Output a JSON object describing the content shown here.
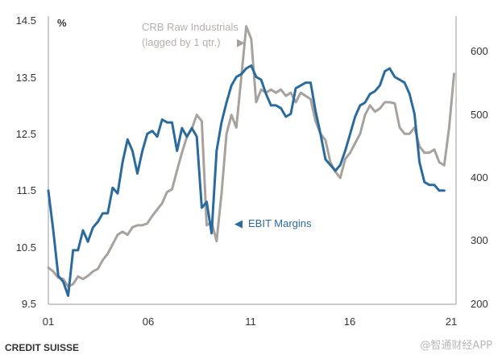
{
  "chart_data": {
    "type": "line",
    "title": "",
    "left_axis": {
      "unit_label": "%",
      "range": [
        9.5,
        14.5
      ],
      "ticks": [
        "14.5",
        "13.5",
        "12.5",
        "11.5",
        "10.5",
        "9.5"
      ]
    },
    "right_axis": {
      "range": [
        200,
        650
      ],
      "ticks": [
        "600",
        "500",
        "400",
        "300",
        "200"
      ]
    },
    "x_axis": {
      "range": [
        2001,
        2021.6
      ],
      "ticks": [
        "01",
        "06",
        "11",
        "16",
        "21"
      ]
    },
    "grid": false,
    "series": [
      {
        "name": "EBIT Margins",
        "axis": "left",
        "color": "#2b6a9c",
        "x": [
          2001.0,
          2001.25,
          2001.5,
          2001.75,
          2002.0,
          2002.25,
          2002.5,
          2002.75,
          2003.0,
          2003.25,
          2003.5,
          2003.75,
          2004.0,
          2004.25,
          2004.5,
          2004.75,
          2005.0,
          2005.25,
          2005.5,
          2005.75,
          2006.0,
          2006.25,
          2006.5,
          2006.75,
          2007.0,
          2007.25,
          2007.5,
          2007.75,
          2008.0,
          2008.25,
          2008.5,
          2008.75,
          2009.0,
          2009.25,
          2009.5,
          2009.75,
          2010.0,
          2010.25,
          2010.5,
          2010.75,
          2011.0,
          2011.25,
          2011.5,
          2011.75,
          2012.0,
          2012.25,
          2012.5,
          2012.75,
          2013.0,
          2013.25,
          2013.5,
          2013.75,
          2014.0,
          2014.25,
          2014.5,
          2014.75,
          2015.0,
          2015.25,
          2015.5,
          2015.75,
          2016.0,
          2016.25,
          2016.5,
          2016.75,
          2017.0,
          2017.25,
          2017.5,
          2017.75,
          2018.0,
          2018.25,
          2018.5,
          2018.75,
          2019.0,
          2019.25,
          2019.5,
          2019.75,
          2020.0,
          2020.25,
          2020.5,
          2020.75,
          2021.0
        ],
        "values": [
          11.5,
          10.8,
          10.0,
          9.9,
          9.65,
          10.45,
          10.45,
          10.8,
          10.6,
          10.85,
          10.95,
          11.1,
          11.1,
          11.55,
          11.45,
          12.0,
          12.4,
          12.2,
          11.8,
          12.2,
          12.5,
          12.55,
          12.45,
          12.75,
          12.7,
          12.7,
          12.2,
          12.6,
          12.45,
          12.6,
          12.45,
          11.2,
          11.3,
          10.75,
          12.2,
          12.7,
          13.05,
          13.35,
          13.5,
          13.55,
          13.65,
          13.7,
          13.5,
          13.45,
          13.2,
          13.0,
          13.0,
          12.95,
          12.8,
          12.85,
          13.3,
          13.35,
          13.4,
          13.4,
          12.9,
          12.5,
          12.05,
          11.95,
          11.85,
          11.95,
          12.2,
          12.5,
          12.8,
          13.0,
          13.05,
          13.2,
          13.25,
          13.35,
          13.6,
          13.65,
          13.5,
          13.45,
          13.4,
          13.2,
          12.85,
          12.0,
          11.65,
          11.6,
          11.6,
          11.5,
          11.5
        ]
      },
      {
        "name": "CRB Raw Industrials (lagged by 1 qtr.)",
        "axis": "right",
        "color": "#a8a29e",
        "x": [
          2001.0,
          2001.25,
          2001.5,
          2001.75,
          2002.0,
          2002.25,
          2002.5,
          2002.75,
          2003.0,
          2003.25,
          2003.5,
          2003.75,
          2004.0,
          2004.25,
          2004.5,
          2004.75,
          2005.0,
          2005.25,
          2005.5,
          2005.75,
          2006.0,
          2006.25,
          2006.5,
          2006.75,
          2007.0,
          2007.25,
          2007.5,
          2007.75,
          2008.0,
          2008.25,
          2008.5,
          2008.75,
          2009.0,
          2009.25,
          2009.5,
          2009.75,
          2010.0,
          2010.25,
          2010.5,
          2010.75,
          2011.0,
          2011.25,
          2011.5,
          2011.75,
          2012.0,
          2012.25,
          2012.5,
          2012.75,
          2013.0,
          2013.25,
          2013.5,
          2013.75,
          2014.0,
          2014.25,
          2014.5,
          2014.75,
          2015.0,
          2015.25,
          2015.5,
          2015.75,
          2016.0,
          2016.25,
          2016.5,
          2016.75,
          2017.0,
          2017.25,
          2017.5,
          2017.75,
          2018.0,
          2018.25,
          2018.5,
          2018.75,
          2019.0,
          2019.25,
          2019.5,
          2019.75,
          2020.0,
          2020.25,
          2020.5,
          2020.75,
          2021.0,
          2021.25,
          2021.5
        ],
        "values": [
          258,
          252,
          242,
          240,
          228,
          232,
          244,
          240,
          245,
          252,
          256,
          270,
          280,
          295,
          310,
          315,
          310,
          322,
          325,
          325,
          328,
          340,
          350,
          360,
          378,
          382,
          412,
          440,
          465,
          478,
          500,
          490,
          325,
          330,
          300,
          375,
          470,
          500,
          480,
          560,
          640,
          620,
          520,
          540,
          535,
          540,
          535,
          540,
          530,
          535,
          520,
          535,
          530,
          525,
          490,
          470,
          460,
          425,
          410,
          400,
          430,
          440,
          455,
          470,
          500,
          515,
          505,
          510,
          520,
          520,
          518,
          480,
          470,
          470,
          480,
          450,
          440,
          440,
          445,
          425,
          420,
          480,
          565
        ]
      }
    ],
    "annotations": {
      "crb_label_line1": "CRB Raw Industrials",
      "crb_label_line2": "(lagged by 1 qtr.)",
      "crb_arrow": "▶",
      "ebit_label": "EBIT Margins",
      "ebit_arrow": "◀"
    }
  },
  "footer": {
    "source": "CREDIT SUISSE",
    "watermark": "@智通财经APP"
  }
}
